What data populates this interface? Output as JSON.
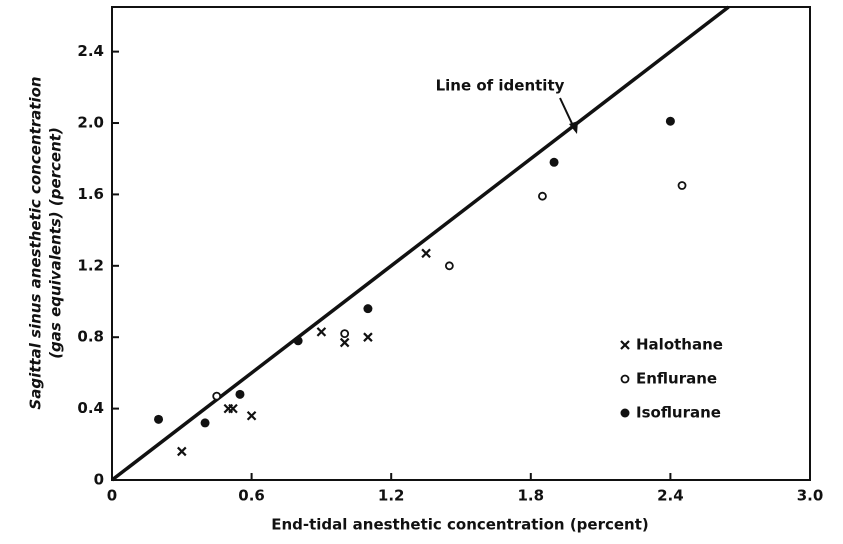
{
  "chart_data": {
    "type": "scatter",
    "xlabel": "End-tidal anesthetic concentration (percent)",
    "ylabel": [
      "Sagittal sinus anesthetic concentration",
      "(gas equivalents) (percent)"
    ],
    "xlim": [
      0,
      3.0
    ],
    "ylim": [
      0,
      2.65
    ],
    "xticks": [
      0,
      0.6,
      1.2,
      1.8,
      2.4,
      {
        "value": 3.0,
        "label": "3.0"
      }
    ],
    "yticks": [
      0,
      0.4,
      0.8,
      1.2,
      1.6,
      {
        "value": 2.0,
        "label": "2.0"
      },
      2.4
    ],
    "identity_line": {
      "label": "Line of identity",
      "x": [
        0,
        2.65
      ],
      "y": [
        0,
        2.65
      ]
    },
    "legend": "right",
    "series": [
      {
        "name": "Halothane",
        "marker": "x",
        "color": "#111",
        "x": [
          0.3,
          0.5,
          0.52,
          0.6,
          0.9,
          1.0,
          1.1,
          1.35
        ],
        "values": [
          0.16,
          0.4,
          0.4,
          0.36,
          0.83,
          0.77,
          0.8,
          1.27
        ]
      },
      {
        "name": "Enflurane",
        "marker": "open",
        "color": "#111",
        "x": [
          0.45,
          1.0,
          1.45,
          1.85,
          2.45
        ],
        "values": [
          0.47,
          0.82,
          1.2,
          1.59,
          1.65
        ]
      },
      {
        "name": "Isoflurane",
        "marker": "filled",
        "color": "#111",
        "x": [
          0.2,
          0.4,
          0.55,
          0.8,
          1.1,
          1.9,
          2.4
        ],
        "values": [
          0.34,
          0.32,
          0.48,
          0.78,
          0.96,
          1.78,
          2.01
        ]
      }
    ]
  }
}
